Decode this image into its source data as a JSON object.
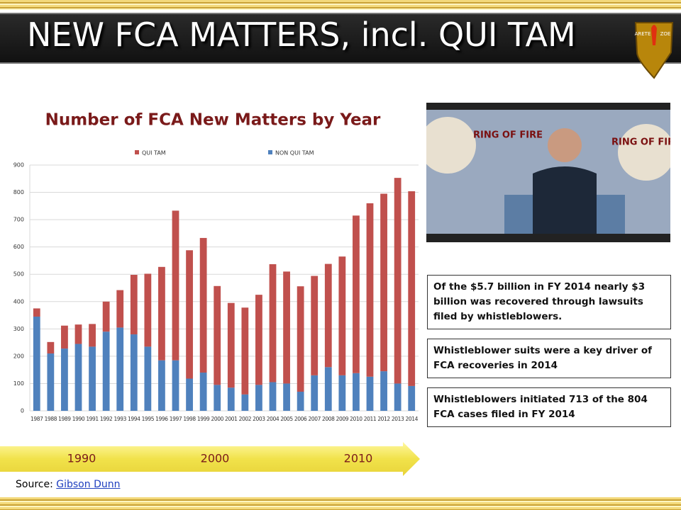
{
  "slide_title": "NEW FCA MATTERS, incl. QUI TAM",
  "logo": {
    "left": "ARETE",
    "right": "ZOE"
  },
  "video": {
    "logo": "RING OF FIRE"
  },
  "chart_data": {
    "type": "bar",
    "stacked": true,
    "title": "Number of FCA New Matters by Year",
    "categories": [
      "1987",
      "1988",
      "1989",
      "1990",
      "1991",
      "1992",
      "1993",
      "1994",
      "1995",
      "1996",
      "1997",
      "1998",
      "1999",
      "2000",
      "2001",
      "2002",
      "2003",
      "2004",
      "2005",
      "2006",
      "2007",
      "2008",
      "2009",
      "2010",
      "2011",
      "2012",
      "2013",
      "2014"
    ],
    "series": [
      {
        "name": "QUI TAM",
        "color": "#c0504d",
        "values": [
          30,
          42,
          84,
          71,
          83,
          110,
          137,
          218,
          267,
          342,
          548,
          470,
          493,
          362,
          310,
          318,
          330,
          432,
          410,
          386,
          364,
          378,
          435,
          577,
          635,
          650,
          753,
          713
        ]
      },
      {
        "name": "NON QUI TAM",
        "color": "#4f81bd",
        "values": [
          345,
          210,
          228,
          245,
          235,
          290,
          305,
          280,
          235,
          185,
          185,
          118,
          140,
          95,
          85,
          60,
          95,
          105,
          100,
          70,
          130,
          160,
          130,
          138,
          125,
          145,
          100,
          91
        ]
      }
    ],
    "ylim": [
      0,
      900
    ],
    "yticks": [
      0,
      100,
      200,
      300,
      400,
      500,
      600,
      700,
      800,
      900
    ],
    "grid": true,
    "legend": "top"
  },
  "timeline": [
    "1990",
    "2000",
    "2010"
  ],
  "source": {
    "label": "Source:",
    "link": "Gibson Dunn"
  },
  "notes": [
    "Of the $5.7 billion in FY 2014 nearly $3 billion was recovered through lawsuits filed by whistleblowers.",
    "Whistleblower suits were a key driver of FCA recoveries in 2014",
    "Whistleblowers initiated 713 of the 804 FCA cases filed in FY 2014"
  ]
}
